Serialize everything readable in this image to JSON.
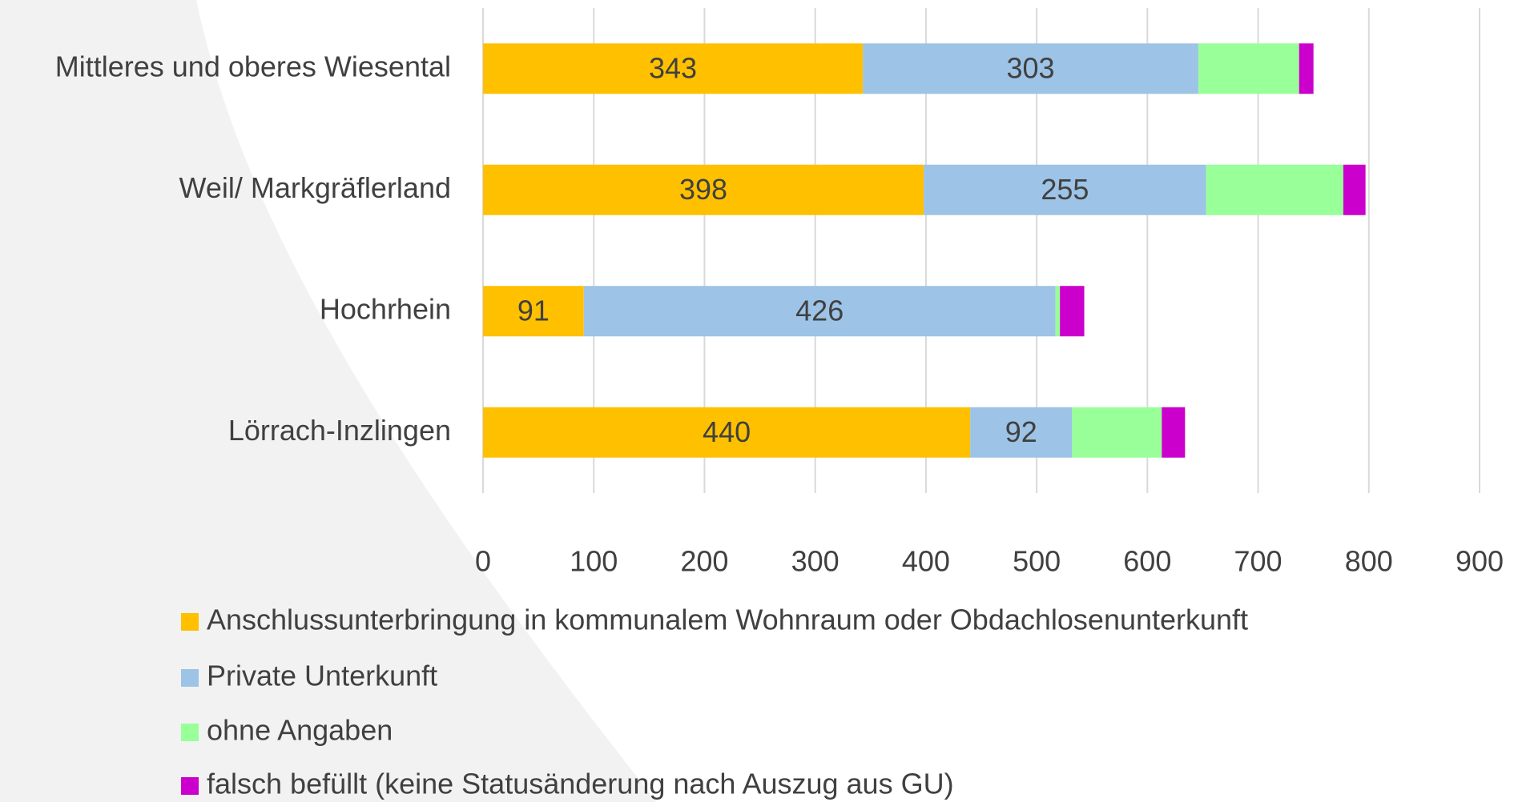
{
  "chart_data": {
    "type": "stacked_barh",
    "categories": [
      "Mittleres und oberes Wiesental",
      "Weil/ Markgräflerland",
      "Hochrhein",
      "Lörrach-Inzlingen"
    ],
    "series": [
      {
        "name": "Anschlussunterbringung in kommunalem Wohnraum oder Obdachlosenunterkunft",
        "color": "#FFC000",
        "values": [
          343,
          398,
          91,
          440
        ],
        "data_labels": true
      },
      {
        "name": "Private Unterkunft",
        "color": "#9DC3E6",
        "values": [
          303,
          255,
          426,
          92
        ],
        "data_labels": true
      },
      {
        "name": "ohne Angaben",
        "color": "#99FF99",
        "values": [
          91,
          124,
          4,
          81
        ],
        "data_labels": false
      },
      {
        "name": "falsch befüllt (keine Statusänderung nach Auszug aus GU)",
        "color": "#CC00CC",
        "values": [
          13,
          20,
          22,
          21
        ],
        "data_labels": false
      }
    ],
    "xlim": [
      0,
      900
    ],
    "xticks": [
      0,
      100,
      200,
      300,
      400,
      500,
      600,
      700,
      800,
      900
    ],
    "grid": true,
    "legend": "bottom"
  }
}
